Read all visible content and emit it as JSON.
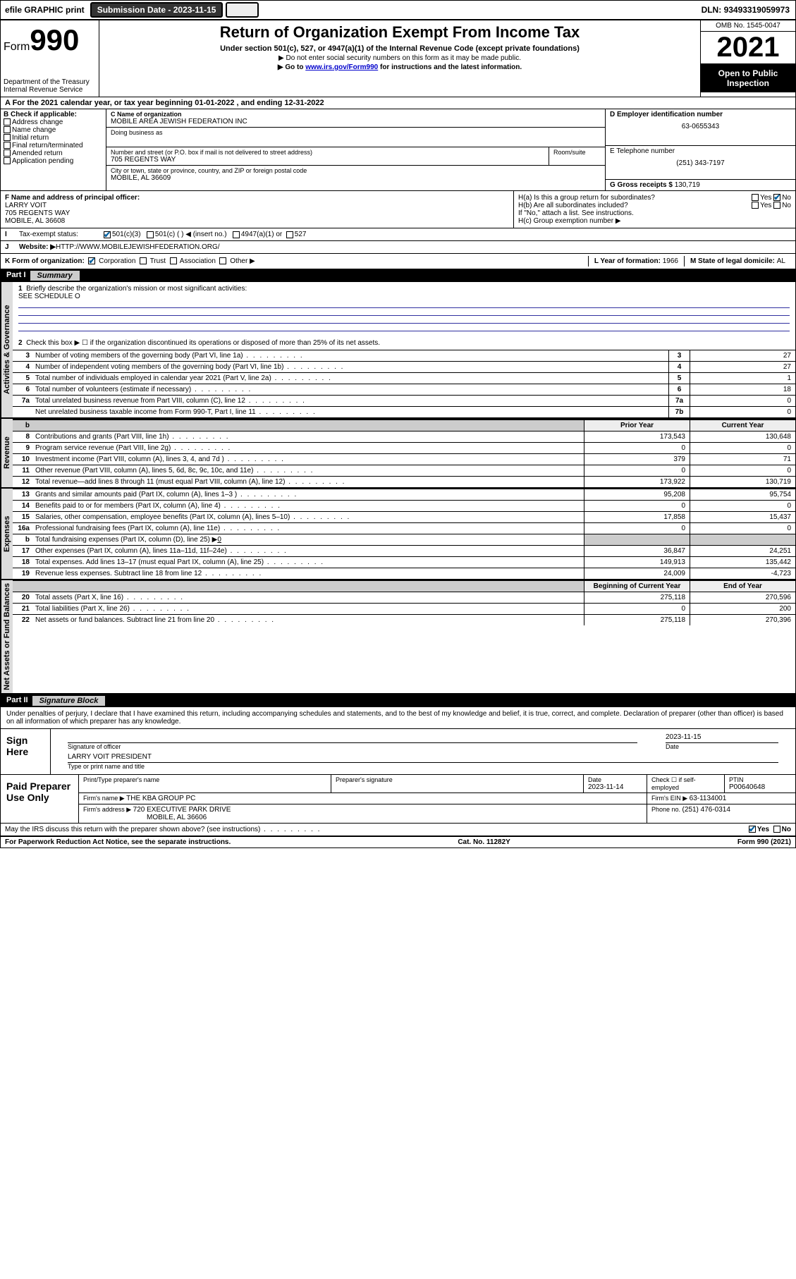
{
  "topbar": {
    "efile": "efile GRAPHIC print",
    "submission_label": "Submission Date - ",
    "submission_date": "2023-11-15",
    "dln_label": "DLN: ",
    "dln": "93493319059973"
  },
  "header": {
    "form_prefix": "Form",
    "form_num": "990",
    "dept": "Department of the Treasury\nInternal Revenue Service",
    "title": "Return of Organization Exempt From Income Tax",
    "sub1": "Under section 501(c), 527, or 4947(a)(1) of the Internal Revenue Code (except private foundations)",
    "sub2": "▶ Do not enter social security numbers on this form as it may be made public.",
    "sub3_pre": "▶ Go to ",
    "sub3_link": "www.irs.gov/Form990",
    "sub3_post": " for instructions and the latest information.",
    "omb": "OMB No. 1545-0047",
    "year": "2021",
    "open_public": "Open to Public Inspection"
  },
  "rowA": {
    "text_pre": "A For the 2021 calendar year, or tax year beginning ",
    "begin": "01-01-2022",
    "mid": "   , and ending ",
    "end": "12-31-2022"
  },
  "colB": {
    "title": "B Check if applicable:",
    "items": [
      "Address change",
      "Name change",
      "Initial return",
      "Final return/terminated",
      "Amended return",
      "Application pending"
    ]
  },
  "colC": {
    "name_label": "C Name of organization",
    "name": "MOBILE AREA JEWISH FEDERATION INC",
    "dba_label": "Doing business as",
    "dba": "",
    "street_label": "Number and street (or P.O. box if mail is not delivered to street address)",
    "room_label": "Room/suite",
    "street": "705 REGENTS WAY",
    "city_label": "City or town, state or province, country, and ZIP or foreign postal code",
    "city": "MOBILE, AL  36609"
  },
  "colD": {
    "ein_label": "D Employer identification number",
    "ein": "63-0655343",
    "phone_label": "E Telephone number",
    "phone": "(251) 343-7197",
    "gross_label": "G Gross receipts $ ",
    "gross": "130,719"
  },
  "rowF": {
    "label": "F Name and address of principal officer:",
    "name": "LARRY VOIT",
    "street": "705 REGENTS WAY",
    "city": "MOBILE, AL  36608"
  },
  "rowH": {
    "ha": "H(a)  Is this a group return for subordinates?",
    "hb": "H(b)  Are all subordinates included?",
    "hb_note": "If \"No,\" attach a list. See instructions.",
    "hc": "H(c)  Group exemption number ▶",
    "yes": "Yes",
    "no": "No"
  },
  "rowI": {
    "label": "Tax-exempt status:",
    "opt1": "501(c)(3)",
    "opt2": "501(c) (   ) ◀ (insert no.)",
    "opt3": "4947(a)(1) or",
    "opt4": "527"
  },
  "rowJ": {
    "label": "Website: ▶ ",
    "url": "HTTP://WWW.MOBILEJEWISHFEDERATION.ORG/"
  },
  "rowK": {
    "label": "K Form of organization:",
    "opts": [
      "Corporation",
      "Trust",
      "Association",
      "Other ▶"
    ],
    "l_label": "L Year of formation: ",
    "l_val": "1966",
    "m_label": "M State of legal domicile: ",
    "m_val": "AL"
  },
  "part1": {
    "label": "Part I",
    "title": "Summary"
  },
  "part2": {
    "label": "Part II",
    "title": "Signature Block"
  },
  "sections": {
    "ag": "Activities & Governance",
    "rev": "Revenue",
    "exp": "Expenses",
    "na": "Net Assets or Fund Balances"
  },
  "summary": {
    "l1_label": "Briefly describe the organization's mission or most significant activities:",
    "l1_val": "SEE SCHEDULE O",
    "l2": "Check this box ▶ ☐  if the organization discontinued its operations or disposed of more than 25% of its net assets.",
    "lines_ag": [
      {
        "n": "3",
        "d": "Number of voting members of the governing body (Part VI, line 1a)",
        "b": "3",
        "v": "27"
      },
      {
        "n": "4",
        "d": "Number of independent voting members of the governing body (Part VI, line 1b)",
        "b": "4",
        "v": "27"
      },
      {
        "n": "5",
        "d": "Total number of individuals employed in calendar year 2021 (Part V, line 2a)",
        "b": "5",
        "v": "1"
      },
      {
        "n": "6",
        "d": "Total number of volunteers (estimate if necessary)",
        "b": "6",
        "v": "18"
      },
      {
        "n": "7a",
        "d": "Total unrelated business revenue from Part VIII, column (C), line 12",
        "b": "7a",
        "v": "0"
      },
      {
        "n": "",
        "d": "Net unrelated business taxable income from Form 990-T, Part I, line 11",
        "b": "7b",
        "v": "0"
      }
    ],
    "col_hdr_prior": "Prior Year",
    "col_hdr_curr": "Current Year",
    "lines_rev": [
      {
        "n": "8",
        "d": "Contributions and grants (Part VIII, line 1h)",
        "p": "173,543",
        "c": "130,648"
      },
      {
        "n": "9",
        "d": "Program service revenue (Part VIII, line 2g)",
        "p": "0",
        "c": "0"
      },
      {
        "n": "10",
        "d": "Investment income (Part VIII, column (A), lines 3, 4, and 7d )",
        "p": "379",
        "c": "71"
      },
      {
        "n": "11",
        "d": "Other revenue (Part VIII, column (A), lines 5, 6d, 8c, 9c, 10c, and 11e)",
        "p": "0",
        "c": "0"
      },
      {
        "n": "12",
        "d": "Total revenue—add lines 8 through 11 (must equal Part VIII, column (A), line 12)",
        "p": "173,922",
        "c": "130,719"
      }
    ],
    "lines_exp": [
      {
        "n": "13",
        "d": "Grants and similar amounts paid (Part IX, column (A), lines 1–3 )",
        "p": "95,208",
        "c": "95,754"
      },
      {
        "n": "14",
        "d": "Benefits paid to or for members (Part IX, column (A), line 4)",
        "p": "0",
        "c": "0"
      },
      {
        "n": "15",
        "d": "Salaries, other compensation, employee benefits (Part IX, column (A), lines 5–10)",
        "p": "17,858",
        "c": "15,437"
      },
      {
        "n": "16a",
        "d": "Professional fundraising fees (Part IX, column (A), line 11e)",
        "p": "0",
        "c": "0"
      }
    ],
    "line16b": {
      "n": "b",
      "d": "Total fundraising expenses (Part IX, column (D), line 25) ▶",
      "v": "0"
    },
    "lines_exp2": [
      {
        "n": "17",
        "d": "Other expenses (Part IX, column (A), lines 11a–11d, 11f–24e)",
        "p": "36,847",
        "c": "24,251"
      },
      {
        "n": "18",
        "d": "Total expenses. Add lines 13–17 (must equal Part IX, column (A), line 25)",
        "p": "149,913",
        "c": "135,442"
      },
      {
        "n": "19",
        "d": "Revenue less expenses. Subtract line 18 from line 12",
        "p": "24,009",
        "c": "-4,723"
      }
    ],
    "col_hdr_begin": "Beginning of Current Year",
    "col_hdr_end": "End of Year",
    "lines_na": [
      {
        "n": "20",
        "d": "Total assets (Part X, line 16)",
        "p": "275,118",
        "c": "270,596"
      },
      {
        "n": "21",
        "d": "Total liabilities (Part X, line 26)",
        "p": "0",
        "c": "200"
      },
      {
        "n": "22",
        "d": "Net assets or fund balances. Subtract line 21 from line 20",
        "p": "275,118",
        "c": "270,396"
      }
    ]
  },
  "sig": {
    "declaration": "Under penalties of perjury, I declare that I have examined this return, including accompanying schedules and statements, and to the best of my knowledge and belief, it is true, correct, and complete. Declaration of preparer (other than officer) is based on all information of which preparer has any knowledge.",
    "sign_here": "Sign Here",
    "sig_officer": "Signature of officer",
    "date_label": "Date",
    "sig_date": "2023-11-15",
    "officer_name": "LARRY VOIT  PRESIDENT",
    "type_name": "Type or print name and title",
    "paid_prep": "Paid Preparer Use Only",
    "prep_name_label": "Print/Type preparer's name",
    "prep_sig_label": "Preparer's signature",
    "prep_date_label": "Date",
    "prep_date": "2023-11-14",
    "check_self": "Check ☐ if self-employed",
    "ptin_label": "PTIN",
    "ptin": "P00640648",
    "firm_name_label": "Firm's name    ▶ ",
    "firm_name": "THE KBA GROUP PC",
    "firm_ein_label": "Firm's EIN ▶ ",
    "firm_ein": "63-1134001",
    "firm_addr_label": "Firm's address ▶ ",
    "firm_addr": "720 EXECUTIVE PARK DRIVE",
    "firm_city": "MOBILE, AL  36606",
    "firm_phone_label": "Phone no. ",
    "firm_phone": "(251) 476-0314",
    "may_irs": "May the IRS discuss this return with the preparer shown above? (see instructions)",
    "yes": "Yes",
    "no": "No"
  },
  "footer": {
    "left": "For Paperwork Reduction Act Notice, see the separate instructions.",
    "mid": "Cat. No. 11282Y",
    "right": "Form 990 (2021)"
  }
}
